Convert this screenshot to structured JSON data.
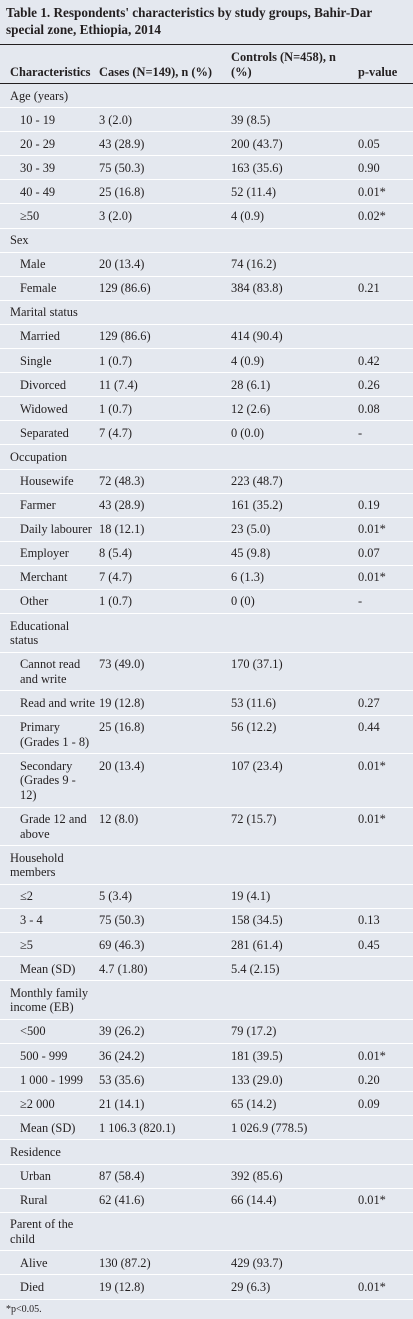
{
  "title": "Table 1. Respondents' characteristics by study groups, Bahir-Dar special zone, Ethiopia, 2014",
  "header": [
    "Characteristics",
    "Cases (N=149), n (%)",
    "Controls (N=458), n (%)",
    "p-value"
  ],
  "groups": [
    {
      "label": "Age (years)",
      "rows": [
        [
          "10 - 19",
          "3 (2.0)",
          "39 (8.5)",
          null
        ],
        [
          "20 - 29",
          "43 (28.9)",
          "200 (43.7)",
          "0.05"
        ],
        [
          "30 - 39",
          "75 (50.3)",
          "163 (35.6)",
          "0.90"
        ],
        [
          "40 - 49",
          "25 (16.8)",
          "52 (11.4)",
          "0.01*"
        ],
        [
          "≥50",
          "3 (2.0)",
          "4 (0.9)",
          "0.02*"
        ]
      ]
    },
    {
      "label": "Sex",
      "rows": [
        [
          "Male",
          "20 (13.4)",
          "74 (16.2)",
          null
        ],
        [
          "Female",
          "129 (86.6)",
          "384 (83.8)",
          "0.21"
        ]
      ]
    },
    {
      "label": "Marital status",
      "rows": [
        [
          "Married",
          "129 (86.6)",
          "414 (90.4)",
          null
        ],
        [
          "Single",
          "1 (0.7)",
          "4 (0.9)",
          "0.42"
        ],
        [
          "Divorced",
          "11 (7.4)",
          "28 (6.1)",
          "0.26"
        ],
        [
          "Widowed",
          "1 (0.7)",
          "12 (2.6)",
          "0.08"
        ],
        [
          "Separated",
          "7 (4.7)",
          "0 (0.0)",
          "-"
        ]
      ]
    },
    {
      "label": "Occupation",
      "rows": [
        [
          "Housewife",
          "72 (48.3)",
          "223 (48.7)",
          null
        ],
        [
          "Farmer",
          "43 (28.9)",
          "161 (35.2)",
          "0.19"
        ],
        [
          "Daily labourer",
          "18 (12.1)",
          "23 (5.0)",
          "0.01*"
        ],
        [
          "Employer",
          "8 (5.4)",
          "45 (9.8)",
          "0.07"
        ],
        [
          "Merchant",
          "7 (4.7)",
          "6 (1.3)",
          "0.01*"
        ],
        [
          "Other",
          "1 (0.7)",
          "0 (0)",
          "-"
        ]
      ]
    },
    {
      "label": "Educational status",
      "rows": [
        [
          "Cannot read and write",
          "73 (49.0)",
          "170 (37.1)",
          null
        ],
        [
          "Read and write",
          "19 (12.8)",
          "53 (11.6)",
          "0.27"
        ],
        [
          "Primary (Grades 1 - 8)",
          "25 (16.8)",
          "56 (12.2)",
          "0.44"
        ],
        [
          "Secondary (Grades 9 - 12)",
          "20 (13.4)",
          "107 (23.4)",
          "0.01*"
        ],
        [
          "Grade 12 and above",
          "12 (8.0)",
          "72 (15.7)",
          "0.01*"
        ]
      ]
    },
    {
      "label": "Household members",
      "rows": [
        [
          "≤2",
          "5 (3.4)",
          "19 (4.1)",
          null
        ],
        [
          "3 - 4",
          "75 (50.3)",
          "158 (34.5)",
          "0.13"
        ],
        [
          "≥5",
          "69 (46.3)",
          "281 (61.4)",
          "0.45"
        ],
        [
          "Mean (SD)",
          "4.7 (1.80)",
          "5.4 (2.15)",
          null
        ]
      ]
    },
    {
      "label": "Monthly family income (EB)",
      "rows": [
        [
          "<500",
          "39 (26.2)",
          "79 (17.2)",
          null
        ],
        [
          "500 - 999",
          "36 (24.2)",
          "181 (39.5)",
          "0.01*"
        ],
        [
          "1 000 - 1999",
          "53 (35.6)",
          "133 (29.0)",
          "0.20"
        ],
        [
          "≥2 000",
          "21 (14.1)",
          "65 (14.2)",
          "0.09"
        ],
        [
          "Mean (SD)",
          "1 106.3 (820.1)",
          "1 026.9 (778.5)",
          null
        ]
      ]
    },
    {
      "label": "Residence",
      "rows": [
        [
          "Urban",
          "87 (58.4)",
          "392 (85.6)",
          null
        ],
        [
          "Rural",
          "62 (41.6)",
          "66 (14.4)",
          "0.01*"
        ]
      ]
    },
    {
      "label": "Parent of the child",
      "rows": [
        [
          "Alive",
          "130 (87.2)",
          "429 (93.7)",
          null
        ],
        [
          "Died",
          "19 (12.8)",
          "29 (6.3)",
          "0.01*"
        ]
      ]
    }
  ],
  "footnote": "*p<0.05."
}
